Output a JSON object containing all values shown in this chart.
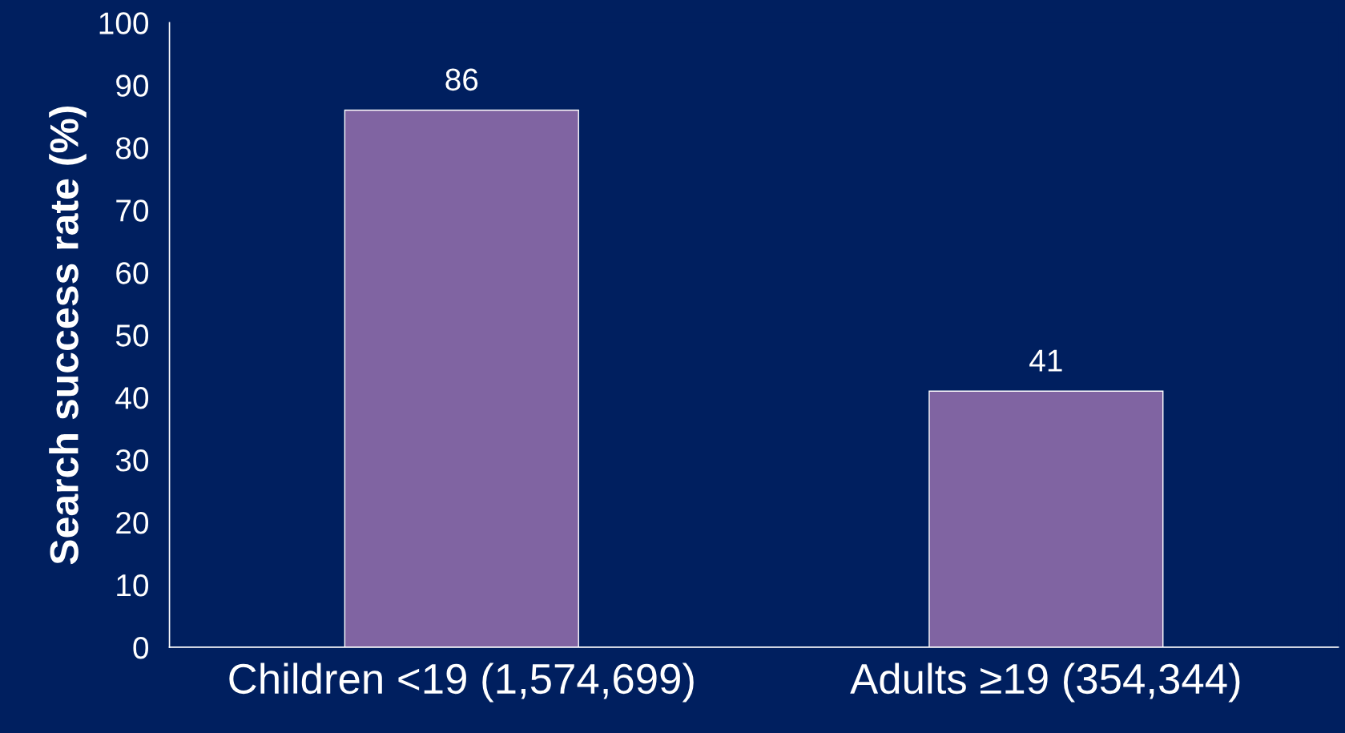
{
  "chart_data": {
    "type": "bar",
    "ylabel": "Search success rate (%)",
    "categories": [
      "Children <19 (1,574,699)",
      "Adults ≥19 (354,344)"
    ],
    "values": [
      86,
      41
    ],
    "color": "#8064a2",
    "ylim": [
      0,
      100
    ],
    "yticks": [
      0,
      10,
      20,
      30,
      40,
      50,
      60,
      70,
      80,
      90,
      100
    ],
    "data_labels": true,
    "grid": false,
    "legend": false
  }
}
